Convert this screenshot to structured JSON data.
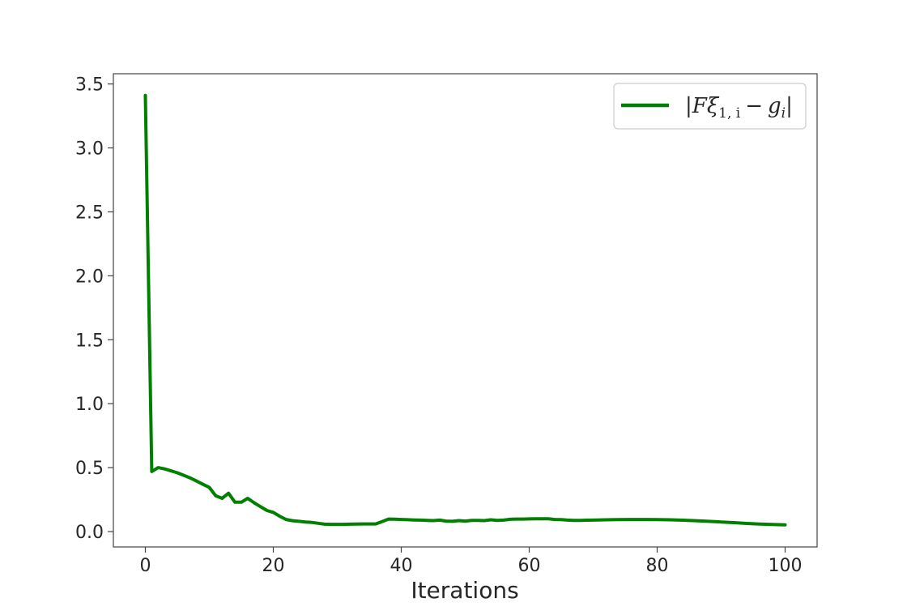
{
  "chart_data": {
    "type": "line",
    "title": "",
    "xlabel": "Iterations",
    "ylabel": "",
    "xlim": [
      -5,
      105
    ],
    "ylim": [
      -0.12,
      3.58
    ],
    "xticks": [
      0,
      20,
      40,
      60,
      80,
      100
    ],
    "xtick_labels": [
      "0",
      "20",
      "40",
      "60",
      "80",
      "100"
    ],
    "yticks": [
      0.0,
      0.5,
      1.0,
      1.5,
      2.0,
      2.5,
      3.0,
      3.5
    ],
    "ytick_labels": [
      "0.0",
      "0.5",
      "1.0",
      "1.5",
      "2.0",
      "2.5",
      "3.0",
      "3.5"
    ],
    "grid": false,
    "legend_position": "upper-right",
    "series": [
      {
        "name": "|Fξ1,i − gi|",
        "color": "#007f00",
        "x": [
          0,
          1,
          2,
          3,
          4,
          5,
          6,
          7,
          8,
          9,
          10,
          11,
          12,
          13,
          14,
          15,
          16,
          17,
          18,
          19,
          20,
          21,
          22,
          23,
          24,
          25,
          26,
          27,
          28,
          29,
          30,
          31,
          32,
          33,
          34,
          35,
          36,
          37,
          38,
          39,
          40,
          41,
          42,
          43,
          44,
          45,
          46,
          47,
          48,
          49,
          50,
          51,
          52,
          53,
          54,
          55,
          56,
          57,
          58,
          59,
          60,
          61,
          62,
          63,
          64,
          65,
          66,
          67,
          68,
          69,
          70,
          72,
          74,
          76,
          78,
          80,
          82,
          84,
          86,
          88,
          90,
          92,
          94,
          96,
          98,
          100
        ],
        "y": [
          3.41,
          0.47,
          0.5,
          0.49,
          0.475,
          0.46,
          0.44,
          0.42,
          0.395,
          0.37,
          0.345,
          0.28,
          0.26,
          0.3,
          0.23,
          0.23,
          0.26,
          0.225,
          0.195,
          0.165,
          0.15,
          0.12,
          0.095,
          0.085,
          0.08,
          0.075,
          0.072,
          0.065,
          0.058,
          0.057,
          0.057,
          0.057,
          0.058,
          0.059,
          0.06,
          0.06,
          0.06,
          0.078,
          0.098,
          0.097,
          0.095,
          0.093,
          0.091,
          0.09,
          0.088,
          0.086,
          0.09,
          0.082,
          0.08,
          0.086,
          0.082,
          0.087,
          0.088,
          0.086,
          0.092,
          0.088,
          0.09,
          0.096,
          0.098,
          0.098,
          0.099,
          0.1,
          0.1,
          0.1,
          0.095,
          0.094,
          0.09,
          0.088,
          0.088,
          0.089,
          0.09,
          0.092,
          0.094,
          0.095,
          0.095,
          0.094,
          0.092,
          0.089,
          0.085,
          0.08,
          0.075,
          0.07,
          0.064,
          0.059,
          0.056,
          0.053
        ]
      }
    ]
  },
  "legend": {
    "label_F": "F",
    "label_xi": "ξ",
    "label_sub1": "1, i",
    "label_minus": "−",
    "label_g": "g",
    "label_subi": "i"
  }
}
